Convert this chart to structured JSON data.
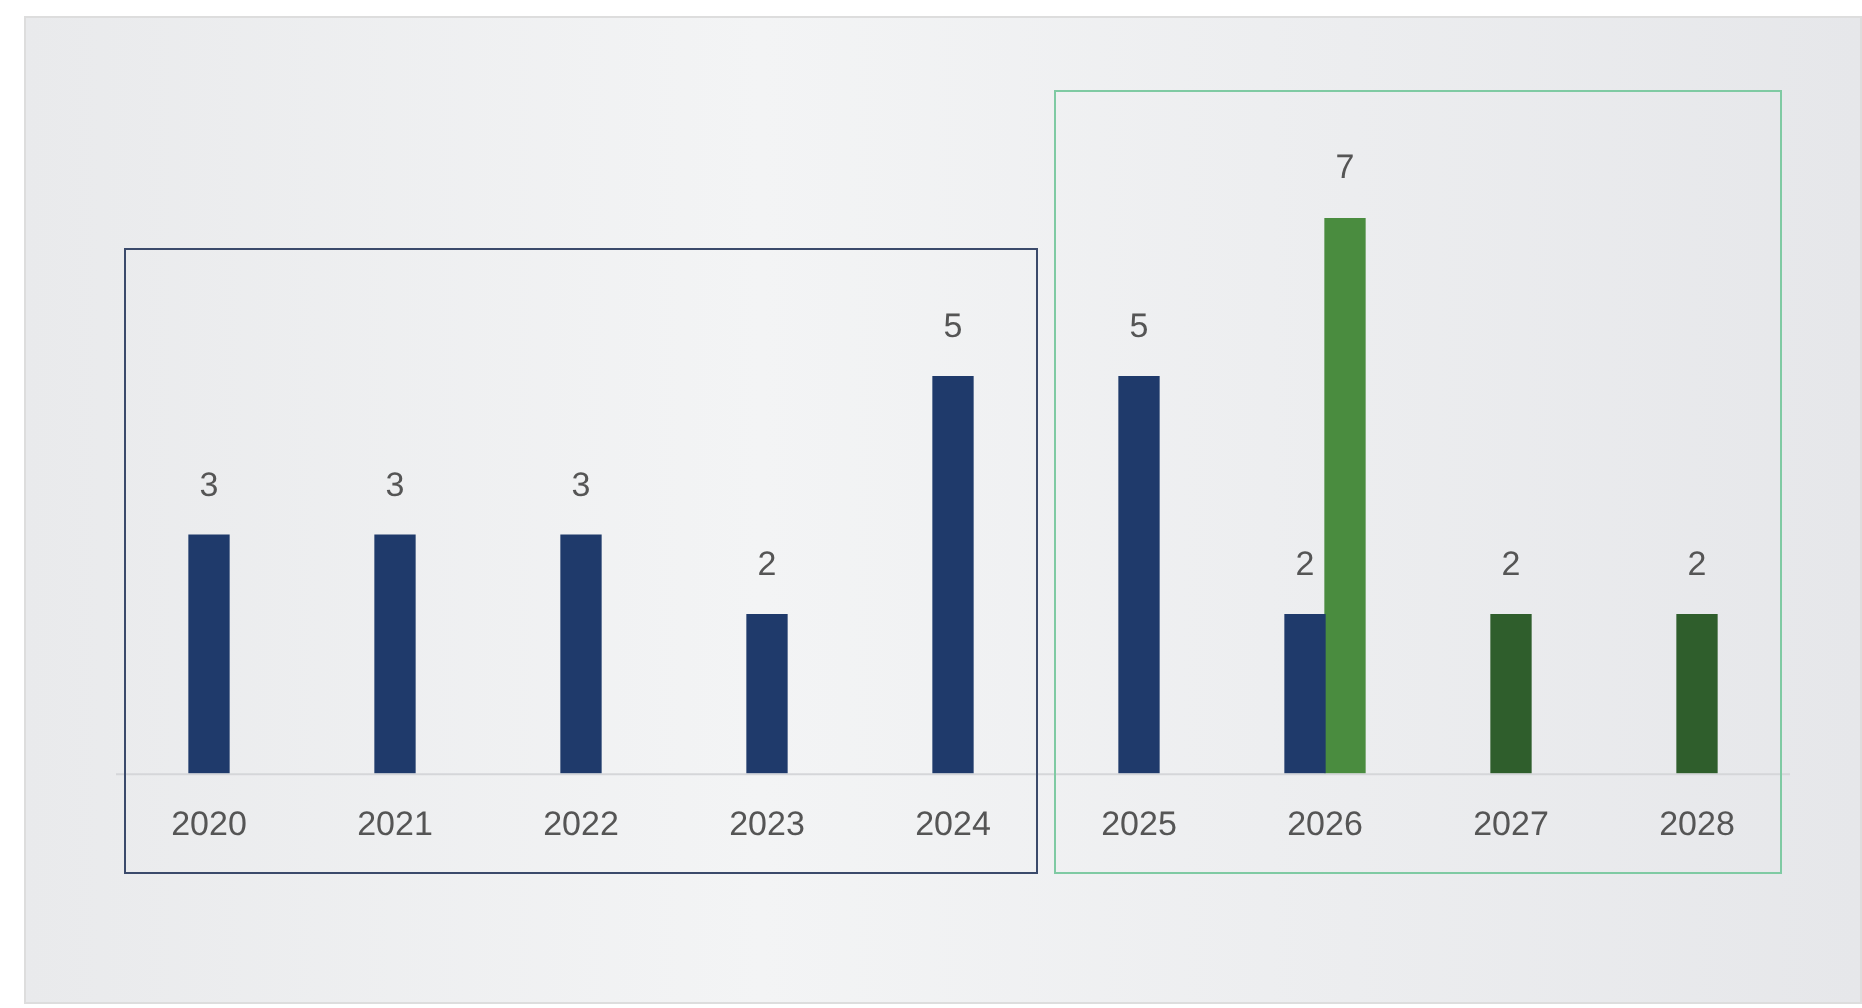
{
  "chart_data": {
    "type": "bar",
    "categories": [
      "2020",
      "2021",
      "2022",
      "2023",
      "2024",
      "2025",
      "2026",
      "2027",
      "2028"
    ],
    "series": [
      {
        "color": "#1f3a6b",
        "values": [
          3,
          3,
          3,
          2,
          5,
          5,
          2,
          null,
          null
        ]
      },
      {
        "color": "#2f5e2c",
        "colors": [
          null,
          null,
          null,
          null,
          null,
          null,
          "#4a8c3f",
          "#2f5e2c",
          "#2f5e2c"
        ],
        "values": [
          null,
          null,
          null,
          null,
          null,
          null,
          7,
          2,
          2
        ]
      }
    ],
    "data_labels": true,
    "grid": false,
    "legend": false
  }
}
